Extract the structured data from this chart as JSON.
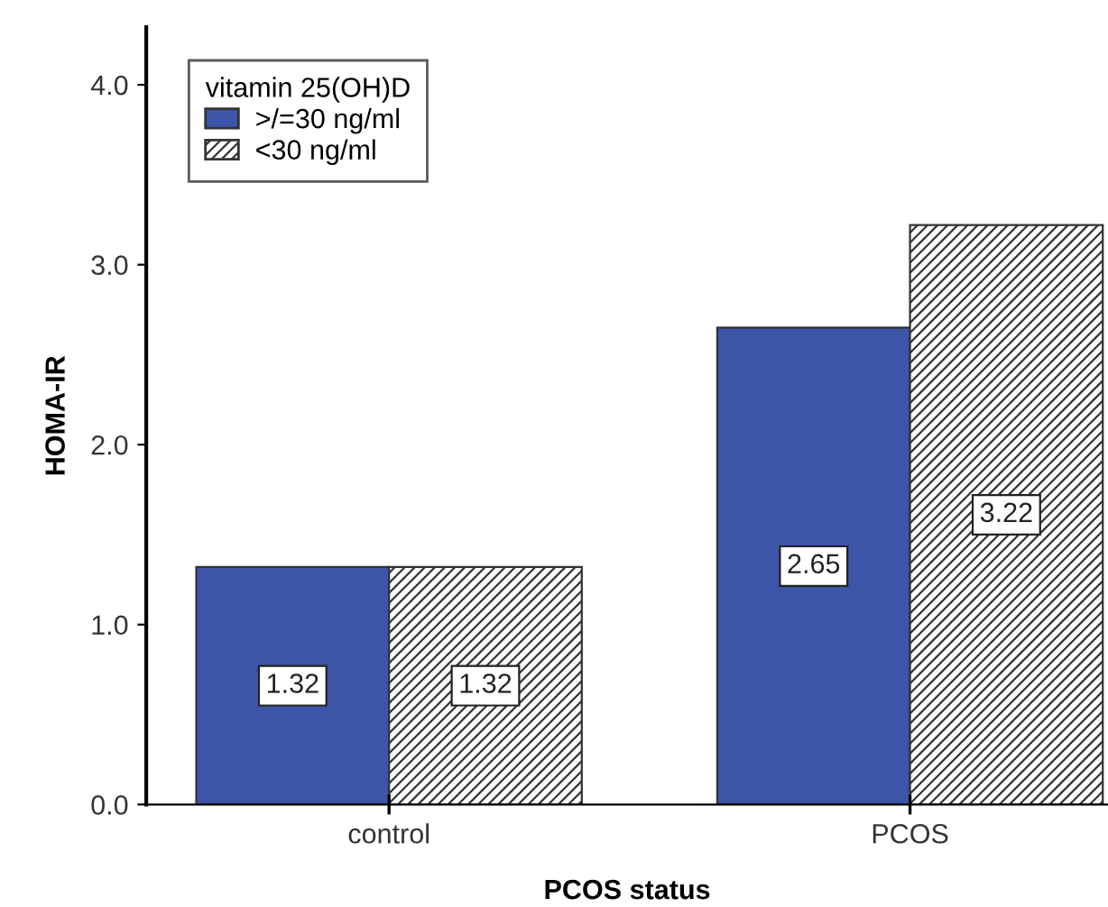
{
  "chart_data": {
    "type": "bar",
    "xlabel": "PCOS status",
    "ylabel": "HOMA-IR",
    "legend_title": "vitamin 25(OH)D",
    "categories": [
      "control",
      "PCOS"
    ],
    "series": [
      {
        "name": ">/=30 ng/ml",
        "color": "#3c55a8",
        "values": [
          1.32,
          2.65
        ]
      },
      {
        "name": "<30 ng/ml",
        "color": "#333333",
        "values": [
          1.32,
          3.22
        ]
      }
    ],
    "ylim": [
      0,
      4.32
    ],
    "yticks": [
      {
        "value": 0,
        "label": "0.0"
      },
      {
        "value": 1,
        "label": "1.0"
      },
      {
        "value": 2,
        "label": "2.0"
      },
      {
        "value": 3,
        "label": "3.0"
      },
      {
        "value": 4,
        "label": "4.0"
      }
    ],
    "data_labels": true,
    "legend": "top left",
    "grid": false
  }
}
